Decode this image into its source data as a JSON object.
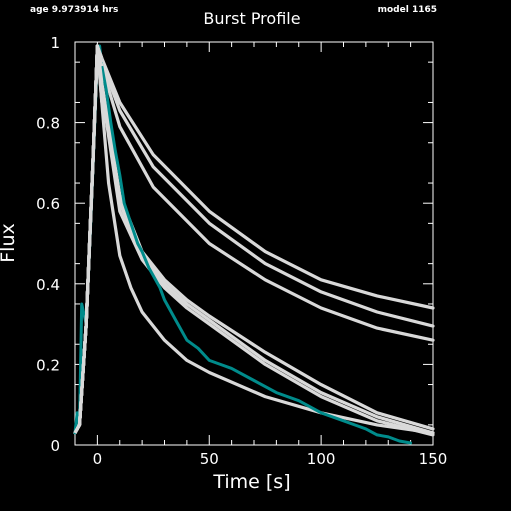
{
  "header": {
    "age_label": "age 9.973914 hrs",
    "model_label": "model 1165"
  },
  "colors": {
    "background": "#000000",
    "frame": "#ffffff",
    "model_curves": "#d9d9d9",
    "observed": "#008b8b"
  },
  "chart_data": {
    "type": "line",
    "title": "Burst Profile",
    "xlabel": "Time [s]",
    "ylabel": "Flux",
    "xlim": [
      -10,
      150
    ],
    "ylim": [
      0,
      1
    ],
    "x_ticks": [
      "0",
      "50",
      "100",
      "150"
    ],
    "x_tick_values": [
      0,
      50,
      100,
      150
    ],
    "y_ticks": [
      "0",
      "0.2",
      "0.4",
      "0.6",
      "0.8",
      "1"
    ],
    "y_tick_values": [
      0,
      0.2,
      0.4,
      0.6,
      0.8,
      1
    ],
    "grid": false,
    "legend": "none",
    "series": [
      {
        "x": [
          -10,
          -8,
          -5,
          -2,
          0,
          2,
          10,
          25,
          50,
          75,
          100,
          125,
          150
        ],
        "y": [
          0.03,
          0.05,
          0.3,
          0.7,
          0.99,
          0.96,
          0.85,
          0.72,
          0.58,
          0.48,
          0.41,
          0.37,
          0.34
        ]
      },
      {
        "x": [
          -10,
          -8,
          -5,
          -2,
          0,
          2,
          10,
          25,
          50,
          75,
          100,
          125,
          150
        ],
        "y": [
          0.03,
          0.05,
          0.3,
          0.7,
          0.99,
          0.95,
          0.83,
          0.69,
          0.55,
          0.45,
          0.38,
          0.33,
          0.295
        ]
      },
      {
        "x": [
          -10,
          -8,
          -5,
          -2,
          0,
          2,
          10,
          25,
          50,
          75,
          100,
          125,
          150
        ],
        "y": [
          0.03,
          0.05,
          0.3,
          0.7,
          0.99,
          0.94,
          0.79,
          0.64,
          0.5,
          0.41,
          0.34,
          0.29,
          0.26
        ]
      },
      {
        "x": [
          -10,
          -8,
          -5,
          -2,
          0,
          2,
          10,
          20,
          30,
          40,
          50,
          75,
          100,
          125,
          150
        ],
        "y": [
          0.03,
          0.05,
          0.3,
          0.7,
          0.99,
          0.9,
          0.62,
          0.48,
          0.41,
          0.36,
          0.32,
          0.23,
          0.15,
          0.08,
          0.04
        ]
      },
      {
        "x": [
          -10,
          -8,
          -5,
          -2,
          0,
          2,
          10,
          20,
          30,
          40,
          50,
          75,
          100,
          125,
          150
        ],
        "y": [
          0.03,
          0.05,
          0.3,
          0.7,
          0.99,
          0.89,
          0.6,
          0.47,
          0.4,
          0.35,
          0.31,
          0.21,
          0.13,
          0.07,
          0.03
        ]
      },
      {
        "x": [
          -10,
          -8,
          -5,
          -2,
          0,
          2,
          10,
          20,
          30,
          40,
          50,
          75,
          100,
          125,
          150
        ],
        "y": [
          0.03,
          0.05,
          0.3,
          0.7,
          0.99,
          0.88,
          0.58,
          0.46,
          0.39,
          0.34,
          0.3,
          0.2,
          0.12,
          0.06,
          0.025
        ]
      },
      {
        "x": [
          -10,
          -8,
          -5,
          -2,
          0,
          2,
          5,
          10,
          15,
          20,
          30,
          40,
          50,
          75,
          100,
          125,
          150
        ],
        "y": [
          0.03,
          0.05,
          0.3,
          0.7,
          0.99,
          0.85,
          0.65,
          0.47,
          0.39,
          0.33,
          0.26,
          0.21,
          0.18,
          0.12,
          0.08,
          0.05,
          0.03
        ]
      },
      {
        "x": [
          -10,
          -9,
          -8,
          -7,
          -5,
          -3,
          -1,
          0,
          1,
          2,
          4,
          6,
          8,
          10,
          12,
          15,
          18,
          20,
          23,
          25,
          28,
          30,
          35,
          40,
          45,
          50,
          55,
          60,
          70,
          80,
          90,
          100,
          110,
          115,
          120,
          125,
          130,
          135,
          140
        ],
        "y": [
          0.03,
          0.08,
          0.05,
          0.35,
          0.3,
          0.55,
          0.82,
          0.96,
          0.99,
          0.94,
          0.88,
          0.8,
          0.73,
          0.67,
          0.6,
          0.55,
          0.5,
          0.48,
          0.44,
          0.42,
          0.39,
          0.36,
          0.31,
          0.26,
          0.24,
          0.21,
          0.2,
          0.19,
          0.16,
          0.13,
          0.11,
          0.08,
          0.06,
          0.05,
          0.04,
          0.025,
          0.02,
          0.01,
          0.005
        ]
      }
    ]
  }
}
